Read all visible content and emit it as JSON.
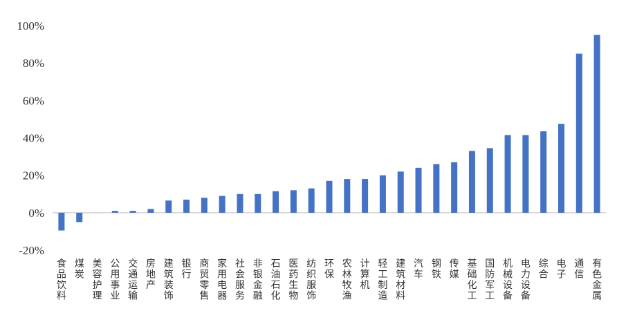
{
  "chart_data": {
    "type": "bar",
    "title": "",
    "xlabel": "",
    "ylabel": "",
    "ylim": [
      -20,
      100
    ],
    "y_ticks": [
      -20,
      0,
      20,
      40,
      60,
      80,
      100
    ],
    "y_tick_labels": [
      "-20%",
      "0%",
      "20%",
      "40%",
      "60%",
      "80%",
      "100%"
    ],
    "grid": false,
    "bar_color": "#4472C4",
    "categories": [
      "食品饮料",
      "煤炭",
      "美容护理",
      "公用事业",
      "交通运输",
      "房地产",
      "建筑装饰",
      "银行",
      "商贸零售",
      "家用电器",
      "社会服务",
      "非银金融",
      "石油石化",
      "医药生物",
      "纺织服饰",
      "环保",
      "农林牧渔",
      "计算机",
      "轻工制造",
      "建筑材料",
      "汽车",
      "钢铁",
      "传媒",
      "基础化工",
      "国防军工",
      "机械设备",
      "电力设备",
      "综合",
      "电子",
      "通信",
      "有色金属"
    ],
    "values": [
      -9.5,
      -5,
      0,
      1,
      1,
      2,
      6.5,
      7,
      8,
      9,
      10,
      10,
      11.5,
      12,
      13,
      17,
      18,
      18,
      20,
      22,
      24,
      26,
      27,
      33,
      34.5,
      41.5,
      41.5,
      43.5,
      47.5,
      85,
      95
    ]
  }
}
